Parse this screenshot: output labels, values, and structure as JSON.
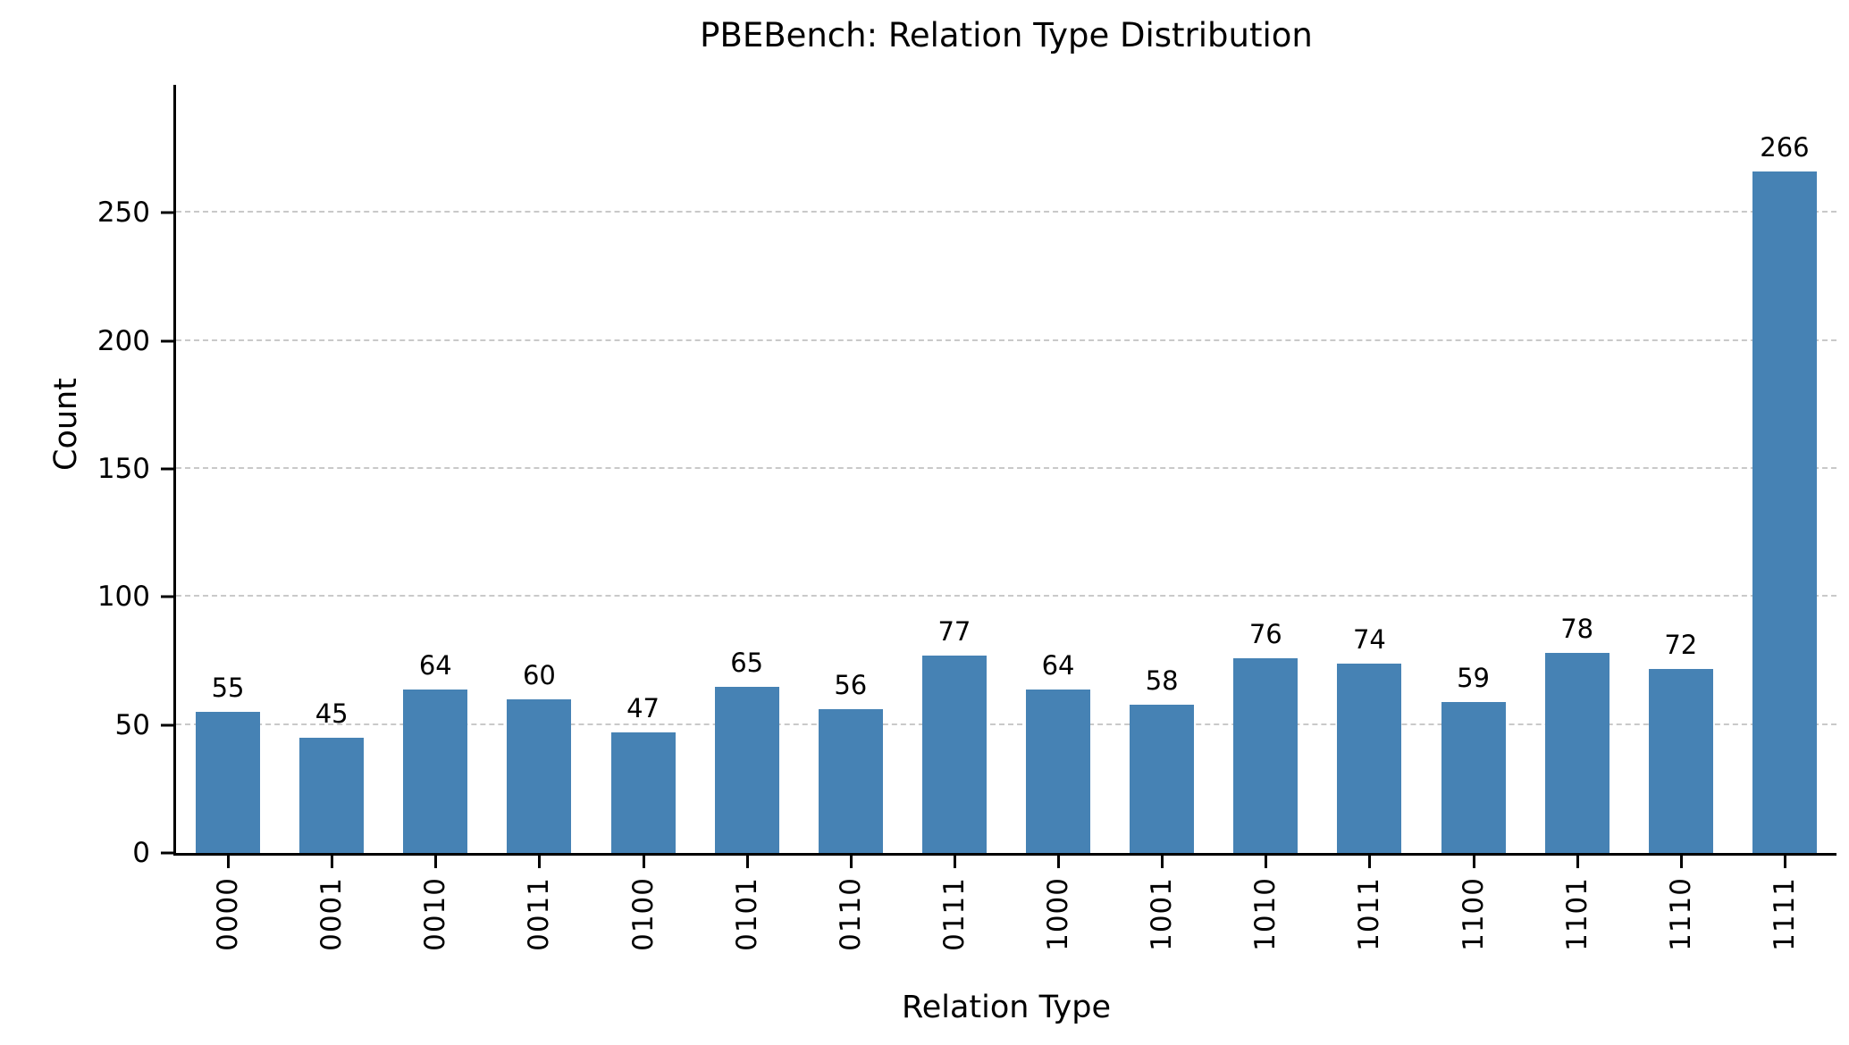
{
  "chart_data": {
    "type": "bar",
    "title": "PBEBench: Relation Type Distribution",
    "xlabel": "Relation Type",
    "ylabel": "Count",
    "categories": [
      "0000",
      "0001",
      "0010",
      "0011",
      "0100",
      "0101",
      "0110",
      "0111",
      "1000",
      "1001",
      "1010",
      "1011",
      "1100",
      "1101",
      "1110",
      "1111"
    ],
    "values": [
      55,
      45,
      64,
      60,
      47,
      65,
      56,
      77,
      64,
      58,
      76,
      74,
      59,
      78,
      72,
      266
    ],
    "value_labels": [
      "55",
      "45",
      "64",
      "60",
      "47",
      "65",
      "56",
      "77",
      "64",
      "58",
      "76",
      "74",
      "59",
      "78",
      "72",
      "266"
    ],
    "ylim": [
      0,
      300
    ],
    "yticks": [
      0,
      50,
      100,
      150,
      200,
      250
    ],
    "grid": "horizontal-dashed",
    "legend": "none",
    "bar_color": "#4682B4",
    "grid_color": "#c9c9c9",
    "text_color": "#000000",
    "background_color": "#ffffff"
  }
}
